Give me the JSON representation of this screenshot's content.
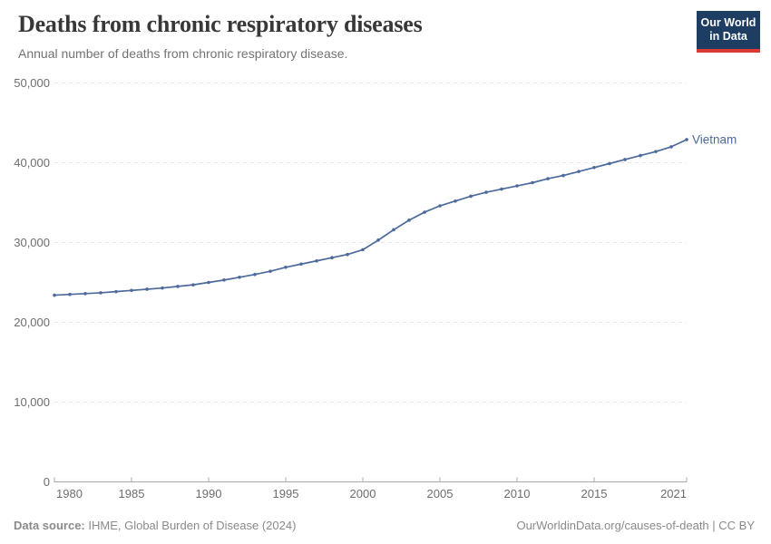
{
  "header": {
    "title": "Deaths from chronic respiratory diseases",
    "subtitle": "Annual number of deaths from chronic respiratory disease.",
    "logo": {
      "line1": "Our World",
      "line2": "in Data",
      "bg_color": "#1d3d63",
      "stripe_color": "#d93a34"
    }
  },
  "chart_data": {
    "type": "line",
    "title": "Deaths from chronic respiratory diseases",
    "x": [
      1980,
      1981,
      1982,
      1983,
      1984,
      1985,
      1986,
      1987,
      1988,
      1989,
      1990,
      1991,
      1992,
      1993,
      1994,
      1995,
      1996,
      1997,
      1998,
      1999,
      2000,
      2001,
      2002,
      2003,
      2004,
      2005,
      2006,
      2007,
      2008,
      2009,
      2010,
      2011,
      2012,
      2013,
      2014,
      2015,
      2016,
      2017,
      2018,
      2019,
      2020,
      2021
    ],
    "series": [
      {
        "name": "Vietnam",
        "color": "#4c6a9c",
        "values": [
          23400,
          23500,
          23600,
          23700,
          23850,
          24000,
          24150,
          24300,
          24500,
          24700,
          25000,
          25300,
          25650,
          26000,
          26400,
          26900,
          27300,
          27700,
          28100,
          28500,
          29100,
          30300,
          31600,
          32800,
          33800,
          34600,
          35200,
          35800,
          36300,
          36700,
          37100,
          37500,
          38000,
          38400,
          38900,
          39400,
          39900,
          40400,
          40900,
          41400,
          42000,
          42900
        ]
      }
    ],
    "x_ticks": [
      1980,
      1985,
      1990,
      1995,
      2000,
      2005,
      2010,
      2015,
      2021
    ],
    "y_ticks": [
      0,
      10000,
      20000,
      30000,
      40000,
      50000
    ],
    "y_tick_labels": [
      "0",
      "10,000",
      "20,000",
      "30,000",
      "40,000",
      "50,000"
    ],
    "xlim": [
      1980,
      2021
    ],
    "ylim": [
      0,
      50000
    ],
    "xlabel": "",
    "ylabel": "",
    "grid": "horizontal dashed",
    "legend_position": "end-of-line label"
  },
  "footer": {
    "source_label": "Data source:",
    "source_text": " IHME, Global Burden of Disease (2024)",
    "credit": "OurWorldinData.org/causes-of-death | CC BY"
  }
}
